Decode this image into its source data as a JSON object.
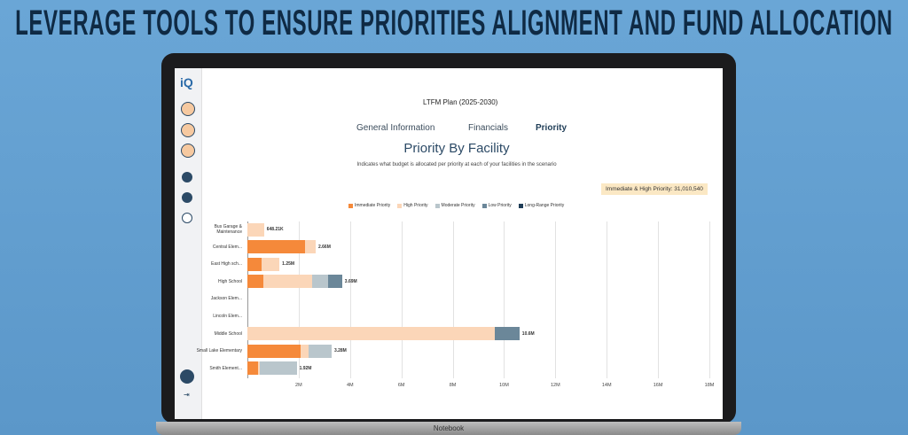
{
  "headline": "LEVERAGE TOOLS TO ENSURE PRIORITIES ALIGNMENT AND FUND ALLOCATION",
  "app": {
    "logo": "iQ",
    "plan_title": "LTFM Plan (2025-2030)",
    "tabs": [
      "General Information",
      "Financials",
      "Priority"
    ],
    "summary": "Immediate & High Priority: 31,010,540"
  },
  "chart_data": {
    "type": "bar",
    "orientation": "horizontal",
    "stacked": true,
    "title": "Priority By Facility",
    "subtitle": "Indicates what budget is allocated per priority at each of your facilities in the scenario",
    "categories": [
      "Bus Garage & Maintenance",
      "Central Elem...",
      "East High sch...",
      "High School",
      "Jackson Elem...",
      "Lincoln Elem...",
      "Middle School",
      "Small Lake Elementary",
      "Smith Element..."
    ],
    "series": [
      {
        "name": "Immediate Priority",
        "color": "#f5893a",
        "values": [
          null,
          2250000,
          550000,
          620000,
          null,
          null,
          null,
          2070000,
          410000
        ]
      },
      {
        "name": "High Priority",
        "color": "#fbd6b8",
        "values": [
          648210,
          410000,
          700000,
          1900000,
          null,
          null,
          9630000,
          310000,
          60000
        ]
      },
      {
        "name": "Moderate Priority",
        "color": "#b9c6cc",
        "values": [
          null,
          null,
          null,
          620000,
          null,
          null,
          null,
          900000,
          1450000
        ]
      },
      {
        "name": "Low Priority",
        "color": "#6b8799",
        "values": [
          null,
          null,
          null,
          550000,
          null,
          null,
          970000,
          null,
          null
        ]
      },
      {
        "name": "Long-Range Priority",
        "color": "#1f3d57",
        "values": [
          null,
          null,
          null,
          null,
          null,
          null,
          null,
          null,
          null
        ]
      }
    ],
    "total_labels": [
      "648.21K",
      "2.66M",
      "1.25M",
      "3.69M",
      null,
      null,
      "10.6M",
      "3.28M",
      "1.92M"
    ],
    "xlim": [
      0,
      18000000
    ],
    "xticks": [
      {
        "value": 2000000,
        "label": "2M"
      },
      {
        "value": 4000000,
        "label": "4M"
      },
      {
        "value": 6000000,
        "label": "6M"
      },
      {
        "value": 8000000,
        "label": "8M"
      },
      {
        "value": 10000000,
        "label": "10M"
      },
      {
        "value": 12000000,
        "label": "12M"
      },
      {
        "value": 14000000,
        "label": "14M"
      },
      {
        "value": 16000000,
        "label": "16M"
      },
      {
        "value": 18000000,
        "label": "18M"
      }
    ],
    "grid": true,
    "legend": "top"
  },
  "device_label": "Notebook"
}
